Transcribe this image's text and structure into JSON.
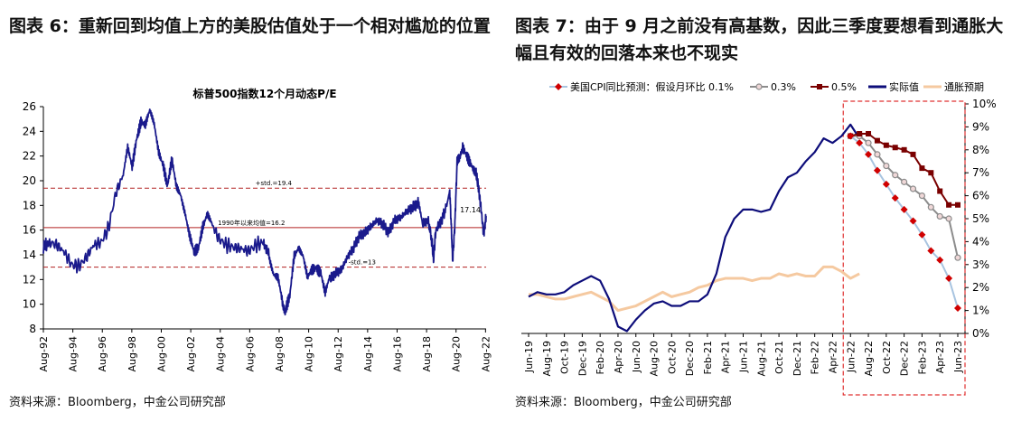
{
  "left": {
    "title": "图表 6：重新回到均值上方的美股估值处于一个相对尴尬的位置",
    "source": "资料来源：Bloomberg，中金公司研究部"
  },
  "right": {
    "title": "图表 7：由于 9 月之前没有高基数，因此三季度要想看到通胀大幅且有效的回落本来也不现实",
    "source": "资料来源：Bloomberg，中金公司研究部"
  },
  "chart_data": [
    {
      "type": "line",
      "title": "标普500指数12个月动态P/E",
      "xlabel": "",
      "ylabel": "",
      "ylim": [
        8,
        26
      ],
      "yticks": [
        8,
        10,
        12,
        14,
        16,
        18,
        20,
        22,
        24,
        26
      ],
      "x_ticks": [
        "Aug-92",
        "Aug-94",
        "Aug-96",
        "Aug-98",
        "Aug-00",
        "Aug-02",
        "Aug-04",
        "Aug-06",
        "Aug-08",
        "Aug-10",
        "Aug-12",
        "Aug-14",
        "Aug-16",
        "Aug-18",
        "Aug-20",
        "Aug-22"
      ],
      "x_range": [
        1992.58,
        2022.62
      ],
      "series": [
        {
          "color": "#1a1a8c",
          "points": [
            [
              1992.58,
              14.6
            ],
            [
              1993.0,
              15.0
            ],
            [
              1993.5,
              14.8
            ],
            [
              1994.0,
              14.2
            ],
            [
              1994.5,
              13.2
            ],
            [
              1995.0,
              13.1
            ],
            [
              1995.5,
              13.8
            ],
            [
              1996.0,
              14.8
            ],
            [
              1996.5,
              15.0
            ],
            [
              1997.0,
              16.2
            ],
            [
              1997.5,
              19.0
            ],
            [
              1998.0,
              20.5
            ],
            [
              1998.3,
              22.5
            ],
            [
              1998.6,
              21.0
            ],
            [
              1998.9,
              23.5
            ],
            [
              1999.2,
              25.0
            ],
            [
              1999.5,
              24.5
            ],
            [
              1999.8,
              25.5
            ],
            [
              2000.1,
              24.5
            ],
            [
              2000.4,
              22.5
            ],
            [
              2000.7,
              21.5
            ],
            [
              2001.0,
              19.5
            ],
            [
              2001.3,
              21.5
            ],
            [
              2001.6,
              19.5
            ],
            [
              2001.9,
              19.0
            ],
            [
              2002.2,
              17.5
            ],
            [
              2002.5,
              15.5
            ],
            [
              2002.8,
              14.0
            ],
            [
              2003.1,
              14.5
            ],
            [
              2003.4,
              16.5
            ],
            [
              2003.7,
              17.5
            ],
            [
              2004.0,
              16.5
            ],
            [
              2004.5,
              15.3
            ],
            [
              2005.0,
              14.8
            ],
            [
              2005.5,
              14.6
            ],
            [
              2006.0,
              14.5
            ],
            [
              2006.5,
              14.3
            ],
            [
              2007.0,
              14.8
            ],
            [
              2007.5,
              15.0
            ],
            [
              2007.9,
              14.0
            ],
            [
              2008.2,
              12.5
            ],
            [
              2008.5,
              12.0
            ],
            [
              2008.8,
              10.0
            ],
            [
              2009.0,
              9.3
            ],
            [
              2009.3,
              10.5
            ],
            [
              2009.6,
              14.0
            ],
            [
              2009.9,
              14.8
            ],
            [
              2010.2,
              14.0
            ],
            [
              2010.5,
              12.0
            ],
            [
              2010.8,
              12.6
            ],
            [
              2011.1,
              13.0
            ],
            [
              2011.4,
              12.8
            ],
            [
              2011.7,
              11.0
            ],
            [
              2012.0,
              12.0
            ],
            [
              2012.4,
              12.5
            ],
            [
              2012.8,
              12.8
            ],
            [
              2013.2,
              13.8
            ],
            [
              2013.6,
              14.5
            ],
            [
              2014.0,
              15.5
            ],
            [
              2014.4,
              15.8
            ],
            [
              2014.8,
              16.3
            ],
            [
              2015.2,
              16.8
            ],
            [
              2015.6,
              16.5
            ],
            [
              2016.0,
              15.8
            ],
            [
              2016.4,
              16.8
            ],
            [
              2016.8,
              17.0
            ],
            [
              2017.2,
              17.5
            ],
            [
              2017.6,
              17.8
            ],
            [
              2018.0,
              18.2
            ],
            [
              2018.3,
              16.5
            ],
            [
              2018.7,
              16.8
            ],
            [
              2018.95,
              15.0
            ],
            [
              2019.05,
              13.6
            ],
            [
              2019.2,
              16.0
            ],
            [
              2019.6,
              16.8
            ],
            [
              2019.95,
              18.0
            ],
            [
              2020.15,
              19.2
            ],
            [
              2020.25,
              16.5
            ],
            [
              2020.35,
              13.5
            ],
            [
              2020.5,
              16.5
            ],
            [
              2020.65,
              21.5
            ],
            [
              2020.8,
              21.8
            ],
            [
              2021.0,
              22.5
            ],
            [
              2021.3,
              22.0
            ],
            [
              2021.6,
              21.5
            ],
            [
              2021.9,
              20.8
            ],
            [
              2022.1,
              19.5
            ],
            [
              2022.3,
              17.5
            ],
            [
              2022.45,
              15.6
            ],
            [
              2022.55,
              16.5
            ],
            [
              2022.62,
              17.14
            ]
          ]
        }
      ],
      "reference_lines": [
        {
          "label": "+std.=19.4",
          "value": 19.4,
          "style": "dashed",
          "color": "#b22222"
        },
        {
          "label": "1990年以来均值=16.2",
          "value": 16.2,
          "style": "solid",
          "color": "#b22222"
        },
        {
          "label": "-std.=13",
          "value": 13.0,
          "style": "dashed",
          "color": "#b22222"
        }
      ],
      "annotations": [
        {
          "label": "17.14",
          "value": 17.14
        }
      ],
      "grid": false,
      "legend": "none"
    },
    {
      "type": "line",
      "title": "",
      "xlabel": "",
      "ylabel": "",
      "ylim": [
        0,
        10
      ],
      "yticks": [
        "0%",
        "1%",
        "2%",
        "3%",
        "4%",
        "5%",
        "6%",
        "7%",
        "8%",
        "9%",
        "10%"
      ],
      "categories": [
        "Jun-19",
        "Aug-19",
        "Oct-19",
        "Dec-19",
        "Feb-20",
        "Apr-20",
        "Jun-20",
        "Aug-20",
        "Oct-20",
        "Dec-20",
        "Feb-21",
        "Apr-21",
        "Jun-21",
        "Aug-21",
        "Oct-21",
        "Dec-21",
        "Feb-22",
        "Apr-22",
        "Jun-22",
        "Aug-22",
        "Oct-22",
        "Dec-22",
        "Feb-23",
        "Apr-23",
        "Jun-23"
      ],
      "legend": "top",
      "forecast_box": {
        "from": "Jun-22",
        "to": "Jun-23",
        "color": "#e03030",
        "style": "dashed"
      },
      "series": [
        {
          "name": "美国CPI同比预测：假设月环比 0.1%",
          "color": "#d00000",
          "marker": "diamond",
          "line_color": "#a8c4e0",
          "points": [
            [
              "Jun-22",
              8.6
            ],
            [
              "Jul-22",
              8.3
            ],
            [
              "Aug-22",
              7.8
            ],
            [
              "Sep-22",
              7.1
            ],
            [
              "Oct-22",
              6.5
            ],
            [
              "Nov-22",
              5.9
            ],
            [
              "Dec-22",
              5.4
            ],
            [
              "Jan-23",
              4.9
            ],
            [
              "Feb-23",
              4.3
            ],
            [
              "Mar-23",
              3.6
            ],
            [
              "Apr-23",
              3.2
            ],
            [
              "May-23",
              2.4
            ],
            [
              "Jun-23",
              1.1
            ]
          ]
        },
        {
          "name": "0.3%",
          "color": "#8c8c8c",
          "marker": "circle",
          "points": [
            [
              "Jun-22",
              8.6
            ],
            [
              "Jul-22",
              8.6
            ],
            [
              "Aug-22",
              8.3
            ],
            [
              "Sep-22",
              7.8
            ],
            [
              "Oct-22",
              7.3
            ],
            [
              "Nov-22",
              6.9
            ],
            [
              "Dec-22",
              6.6
            ],
            [
              "Jan-23",
              6.3
            ],
            [
              "Feb-23",
              6.0
            ],
            [
              "Mar-23",
              5.5
            ],
            [
              "Apr-23",
              5.1
            ],
            [
              "May-23",
              5.0
            ],
            [
              "Jun-23",
              3.3
            ]
          ]
        },
        {
          "name": "0.5%",
          "color": "#7a0000",
          "marker": "square",
          "points": [
            [
              "Jun-22",
              8.6
            ],
            [
              "Jul-22",
              8.7
            ],
            [
              "Aug-22",
              8.7
            ],
            [
              "Sep-22",
              8.4
            ],
            [
              "Oct-22",
              8.2
            ],
            [
              "Nov-22",
              8.1
            ],
            [
              "Dec-22",
              8.0
            ],
            [
              "Jan-23",
              7.8
            ],
            [
              "Feb-23",
              7.2
            ],
            [
              "Mar-23",
              7.0
            ],
            [
              "Apr-23",
              6.2
            ],
            [
              "May-23",
              5.6
            ],
            [
              "Jun-23",
              5.6
            ]
          ]
        },
        {
          "name": "实际值",
          "color": "#0d0d7a",
          "marker": "none",
          "points": [
            [
              "Jun-19",
              1.6
            ],
            [
              "Jul-19",
              1.8
            ],
            [
              "Aug-19",
              1.7
            ],
            [
              "Sep-19",
              1.7
            ],
            [
              "Oct-19",
              1.8
            ],
            [
              "Nov-19",
              2.1
            ],
            [
              "Dec-19",
              2.3
            ],
            [
              "Jan-20",
              2.5
            ],
            [
              "Feb-20",
              2.3
            ],
            [
              "Mar-20",
              1.5
            ],
            [
              "Apr-20",
              0.3
            ],
            [
              "May-20",
              0.1
            ],
            [
              "Jun-20",
              0.6
            ],
            [
              "Jul-20",
              1.0
            ],
            [
              "Aug-20",
              1.3
            ],
            [
              "Sep-20",
              1.4
            ],
            [
              "Oct-20",
              1.2
            ],
            [
              "Nov-20",
              1.2
            ],
            [
              "Dec-20",
              1.4
            ],
            [
              "Jan-21",
              1.4
            ],
            [
              "Feb-21",
              1.7
            ],
            [
              "Mar-21",
              2.6
            ],
            [
              "Apr-21",
              4.2
            ],
            [
              "May-21",
              5.0
            ],
            [
              "Jun-21",
              5.4
            ],
            [
              "Jul-21",
              5.4
            ],
            [
              "Aug-21",
              5.3
            ],
            [
              "Sep-21",
              5.4
            ],
            [
              "Oct-21",
              6.2
            ],
            [
              "Nov-21",
              6.8
            ],
            [
              "Dec-21",
              7.0
            ],
            [
              "Jan-22",
              7.5
            ],
            [
              "Feb-22",
              7.9
            ],
            [
              "Mar-22",
              8.5
            ],
            [
              "Apr-22",
              8.3
            ],
            [
              "May-22",
              8.6
            ],
            [
              "Jun-22",
              9.1
            ],
            [
              "Jul-22",
              8.5
            ]
          ]
        },
        {
          "name": "通胀预期",
          "color": "#f5c9a0",
          "marker": "none",
          "points": [
            [
              "Jun-19",
              1.7
            ],
            [
              "Jul-19",
              1.7
            ],
            [
              "Aug-19",
              1.6
            ],
            [
              "Sep-19",
              1.5
            ],
            [
              "Oct-19",
              1.5
            ],
            [
              "Nov-19",
              1.6
            ],
            [
              "Dec-19",
              1.7
            ],
            [
              "Jan-20",
              1.8
            ],
            [
              "Feb-20",
              1.6
            ],
            [
              "Mar-20",
              1.4
            ],
            [
              "Apr-20",
              1.0
            ],
            [
              "May-20",
              1.1
            ],
            [
              "Jun-20",
              1.2
            ],
            [
              "Jul-20",
              1.4
            ],
            [
              "Aug-20",
              1.6
            ],
            [
              "Sep-20",
              1.8
            ],
            [
              "Oct-20",
              1.6
            ],
            [
              "Nov-20",
              1.7
            ],
            [
              "Dec-20",
              1.8
            ],
            [
              "Jan-21",
              2.0
            ],
            [
              "Feb-21",
              2.1
            ],
            [
              "Mar-21",
              2.3
            ],
            [
              "Apr-21",
              2.4
            ],
            [
              "May-21",
              2.4
            ],
            [
              "Jun-21",
              2.4
            ],
            [
              "Jul-21",
              2.3
            ],
            [
              "Aug-21",
              2.4
            ],
            [
              "Sep-21",
              2.4
            ],
            [
              "Oct-21",
              2.6
            ],
            [
              "Nov-21",
              2.5
            ],
            [
              "Dec-21",
              2.6
            ],
            [
              "Jan-22",
              2.5
            ],
            [
              "Feb-22",
              2.5
            ],
            [
              "Mar-22",
              2.9
            ],
            [
              "Apr-22",
              2.9
            ],
            [
              "May-22",
              2.7
            ],
            [
              "Jun-22",
              2.4
            ],
            [
              "Jul-22",
              2.6
            ]
          ]
        }
      ]
    }
  ]
}
